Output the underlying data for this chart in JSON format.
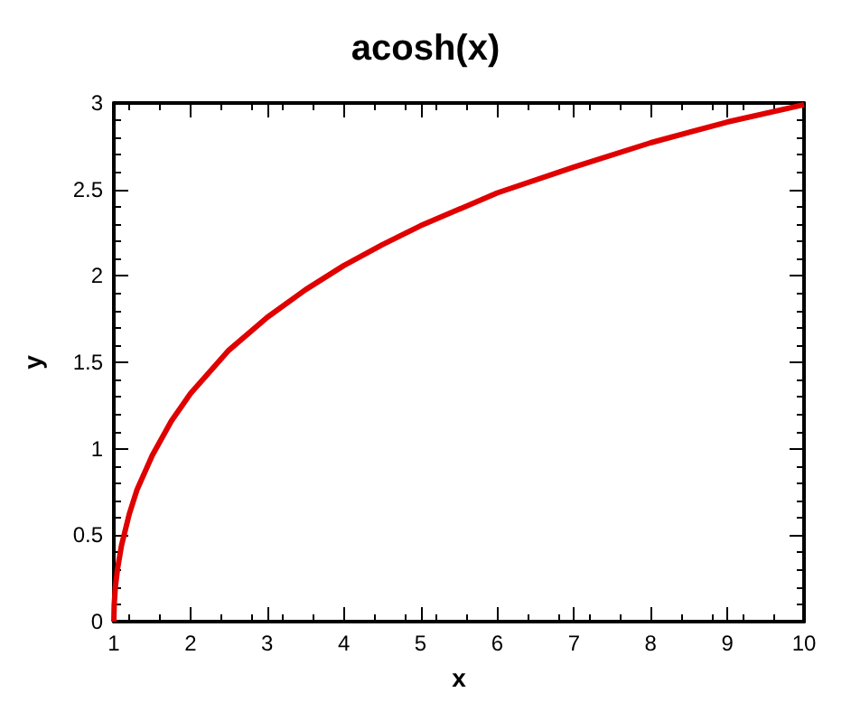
{
  "chart_data": {
    "type": "line",
    "title": "acosh(x)",
    "xlabel": "x",
    "ylabel": "y",
    "x": [
      1,
      1.005,
      1.02,
      1.05,
      1.1,
      1.2,
      1.3,
      1.5,
      1.75,
      2,
      2.5,
      3,
      3.5,
      4,
      4.5,
      5,
      6,
      7,
      8,
      9,
      10
    ],
    "series": [
      {
        "color": "#e00000",
        "values": [
          0,
          0.1,
          0.2,
          0.31,
          0.44,
          0.62,
          0.76,
          0.96,
          1.16,
          1.32,
          1.57,
          1.76,
          1.92,
          2.06,
          2.18,
          2.29,
          2.48,
          2.63,
          2.77,
          2.89,
          2.99
        ]
      }
    ],
    "xlim": [
      1,
      10
    ],
    "xticks": [
      1,
      2,
      3,
      4,
      5,
      6,
      7,
      8,
      9,
      10
    ],
    "ylim": [
      0,
      3
    ],
    "yticks": [
      0,
      0.5,
      1,
      1.5,
      2,
      2.5,
      3
    ],
    "marker": "none",
    "line_style": "solid"
  }
}
